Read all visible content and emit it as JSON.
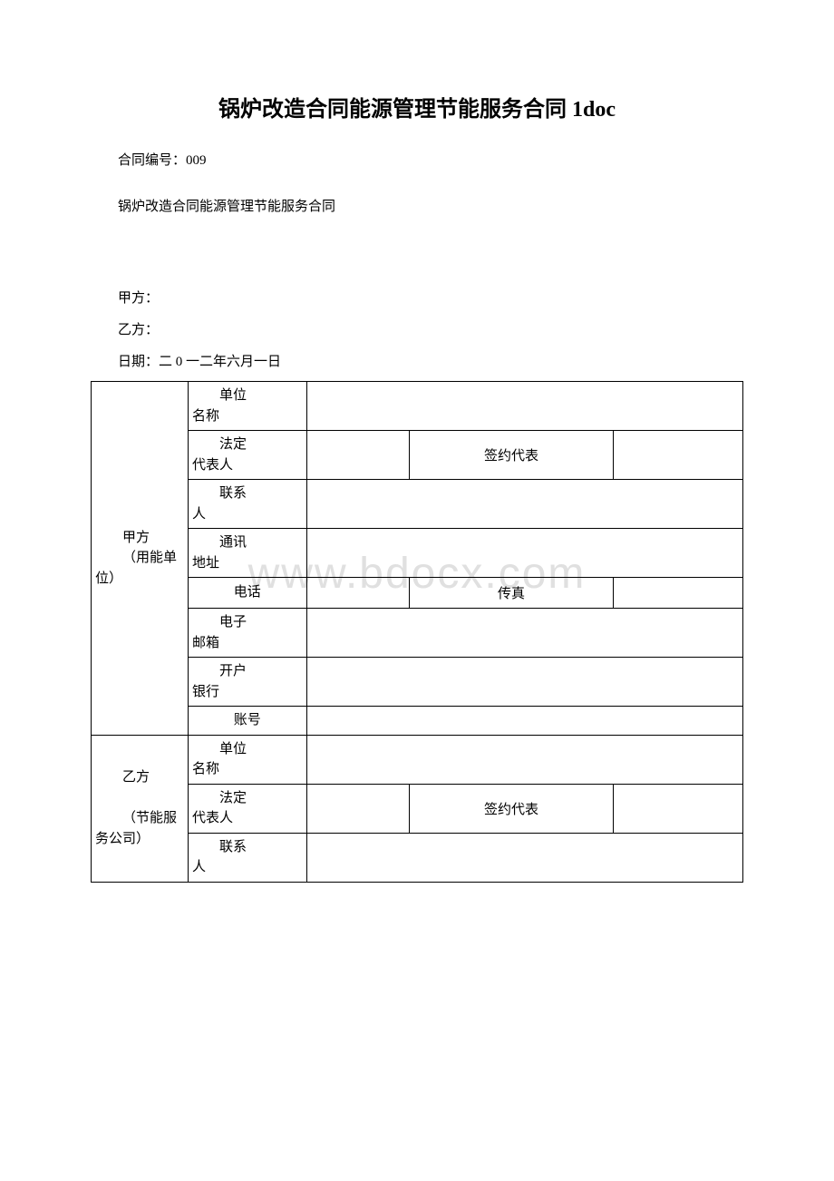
{
  "title": "锅炉改造合同能源管理节能服务合同 1doc",
  "contract_number_label": "合同编号：009",
  "subtitle": "锅炉改造合同能源管理节能服务合同",
  "party_a_label": "甲方：",
  "party_b_label": "乙方：",
  "date_line": "日期：二 0 一二年六月一日",
  "watermark": "www.bdocx.com",
  "table": {
    "party_a": {
      "group_line1": "甲方",
      "group_line2": "（用能单位）",
      "rows": {
        "unit_name_l1": "单位",
        "unit_name_l2": "名称",
        "legal_rep_l1": "法定",
        "legal_rep_l2": "代表人",
        "signing_rep": "签约代表",
        "contact_l1": "联系",
        "contact_l2": "人",
        "address_l1": "通讯",
        "address_l2": "地址",
        "phone": "电话",
        "fax": "传真",
        "email_l1": "电子",
        "email_l2": "邮箱",
        "bank_l1": "开户",
        "bank_l2": "银行",
        "account": "账号"
      }
    },
    "party_b": {
      "group_line1": "乙方",
      "group_line2": "（节能服务公司）",
      "rows": {
        "unit_name_l1": "单位",
        "unit_name_l2": "名称",
        "legal_rep_l1": "法定",
        "legal_rep_l2": "代表人",
        "signing_rep": "签约代表",
        "contact_l1": "联系",
        "contact_l2": "人"
      }
    }
  },
  "colors": {
    "text": "#000000",
    "background": "#ffffff",
    "border": "#000000",
    "watermark": "#e0e0e0"
  }
}
